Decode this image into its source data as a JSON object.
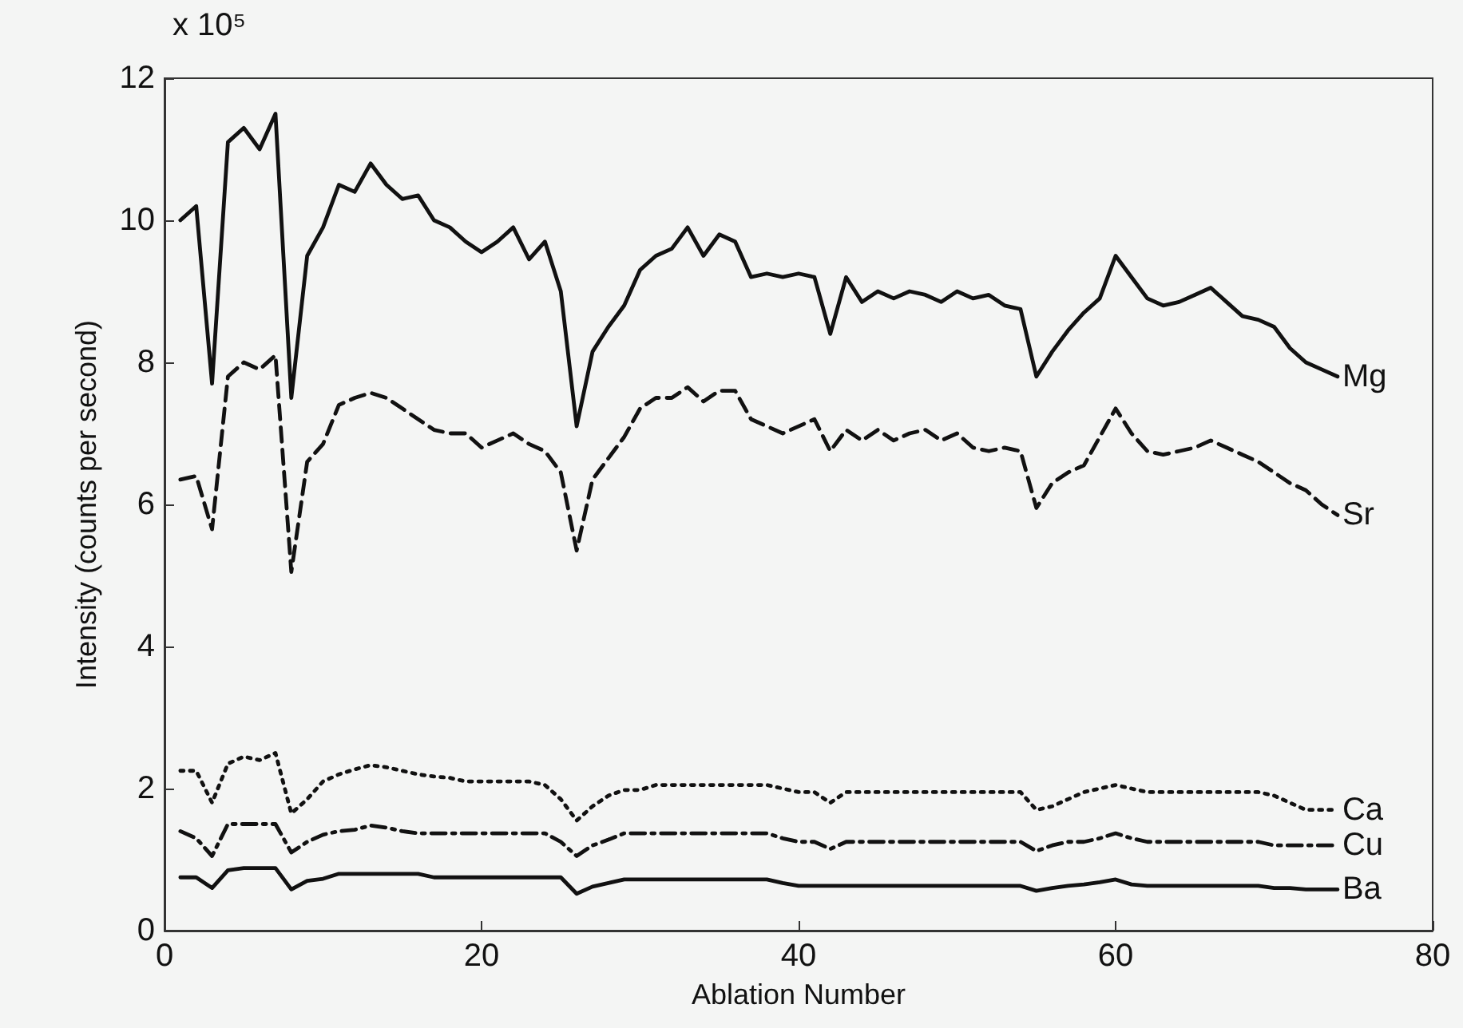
{
  "chart_data": {
    "type": "line",
    "xlabel": "Ablation Number",
    "ylabel": "Intensity (counts per second)",
    "annotations": [
      "x 10⁵"
    ],
    "x": [
      1,
      2,
      3,
      4,
      5,
      6,
      7,
      8,
      9,
      10,
      11,
      12,
      13,
      14,
      15,
      16,
      17,
      18,
      19,
      20,
      21,
      22,
      23,
      24,
      25,
      26,
      27,
      28,
      29,
      30,
      31,
      32,
      33,
      34,
      35,
      36,
      37,
      38,
      39,
      40,
      41,
      42,
      43,
      44,
      45,
      46,
      47,
      48,
      49,
      50,
      51,
      52,
      53,
      54,
      55,
      56,
      57,
      58,
      59,
      60,
      61,
      62,
      63,
      64,
      65,
      66,
      67,
      68,
      69,
      70,
      71,
      72,
      73,
      74
    ],
    "xlim": [
      0,
      80
    ],
    "xticks": [
      0,
      20,
      40,
      60,
      80
    ],
    "ylim": [
      0,
      12
    ],
    "yticks": [
      0,
      2,
      4,
      6,
      8,
      10,
      12
    ],
    "marker": "none",
    "series": [
      {
        "name": "Mg",
        "color": "#111111",
        "line_style": "solid",
        "values": [
          10.0,
          10.2,
          7.7,
          11.1,
          11.3,
          11.0,
          11.5,
          7.5,
          9.5,
          9.9,
          10.5,
          10.4,
          10.8,
          10.5,
          10.3,
          10.35,
          10.0,
          9.9,
          9.7,
          9.55,
          9.7,
          9.9,
          9.45,
          9.7,
          9.0,
          7.1,
          8.15,
          8.5,
          8.8,
          9.3,
          9.5,
          9.6,
          9.9,
          9.5,
          9.8,
          9.7,
          9.2,
          9.25,
          9.2,
          9.25,
          9.2,
          8.4,
          9.2,
          8.85,
          9.0,
          8.9,
          9.0,
          8.95,
          8.85,
          9.0,
          8.9,
          8.95,
          8.8,
          8.75,
          7.8,
          8.15,
          8.45,
          8.7,
          8.9,
          9.5,
          9.2,
          8.9,
          8.8,
          8.85,
          8.95,
          9.05,
          8.85,
          8.65,
          8.6,
          8.5,
          8.2,
          8.0,
          7.9,
          7.8
        ]
      },
      {
        "name": "Sr",
        "color": "#111111",
        "line_style": "dashed",
        "values": [
          6.35,
          6.4,
          5.65,
          7.8,
          8.0,
          7.9,
          8.1,
          5.05,
          6.6,
          6.85,
          7.4,
          7.5,
          7.57,
          7.5,
          7.35,
          7.2,
          7.05,
          7.0,
          7.0,
          6.8,
          6.9,
          7.0,
          6.85,
          6.75,
          6.45,
          5.35,
          6.35,
          6.65,
          6.95,
          7.35,
          7.5,
          7.5,
          7.65,
          7.45,
          7.6,
          7.6,
          7.2,
          7.1,
          7.0,
          7.1,
          7.2,
          6.75,
          7.05,
          6.9,
          7.05,
          6.9,
          7.0,
          7.05,
          6.9,
          7.0,
          6.8,
          6.75,
          6.8,
          6.75,
          5.95,
          6.3,
          6.45,
          6.55,
          6.95,
          7.35,
          7.0,
          6.75,
          6.7,
          6.75,
          6.8,
          6.9,
          6.8,
          6.7,
          6.6,
          6.45,
          6.3,
          6.2,
          6.0,
          5.85
        ]
      },
      {
        "name": "Ca",
        "color": "#111111",
        "line_style": "dotted",
        "values": [
          2.25,
          2.25,
          1.8,
          2.35,
          2.45,
          2.4,
          2.5,
          1.65,
          1.85,
          2.1,
          2.2,
          2.27,
          2.33,
          2.3,
          2.25,
          2.2,
          2.17,
          2.15,
          2.1,
          2.1,
          2.1,
          2.1,
          2.1,
          2.05,
          1.85,
          1.55,
          1.75,
          1.9,
          1.98,
          1.98,
          2.05,
          2.05,
          2.05,
          2.05,
          2.05,
          2.05,
          2.05,
          2.05,
          2.0,
          1.95,
          1.95,
          1.8,
          1.95,
          1.95,
          1.95,
          1.95,
          1.95,
          1.95,
          1.95,
          1.95,
          1.95,
          1.95,
          1.95,
          1.95,
          1.7,
          1.75,
          1.85,
          1.95,
          2.0,
          2.05,
          2.0,
          1.95,
          1.95,
          1.95,
          1.95,
          1.95,
          1.95,
          1.95,
          1.95,
          1.9,
          1.8,
          1.7,
          1.7,
          1.7
        ]
      },
      {
        "name": "Cu",
        "color": "#111111",
        "line_style": "dashdot",
        "values": [
          1.4,
          1.3,
          1.05,
          1.5,
          1.5,
          1.5,
          1.5,
          1.1,
          1.25,
          1.35,
          1.4,
          1.42,
          1.48,
          1.45,
          1.4,
          1.37,
          1.37,
          1.37,
          1.37,
          1.37,
          1.37,
          1.37,
          1.37,
          1.37,
          1.25,
          1.05,
          1.2,
          1.28,
          1.37,
          1.37,
          1.37,
          1.37,
          1.37,
          1.37,
          1.37,
          1.37,
          1.37,
          1.37,
          1.3,
          1.25,
          1.25,
          1.15,
          1.25,
          1.25,
          1.25,
          1.25,
          1.25,
          1.25,
          1.25,
          1.25,
          1.25,
          1.25,
          1.25,
          1.25,
          1.12,
          1.2,
          1.25,
          1.25,
          1.3,
          1.37,
          1.3,
          1.25,
          1.25,
          1.25,
          1.25,
          1.25,
          1.25,
          1.25,
          1.25,
          1.2,
          1.2,
          1.2,
          1.2,
          1.2
        ]
      },
      {
        "name": "Ba",
        "color": "#111111",
        "line_style": "solid",
        "values": [
          0.75,
          0.75,
          0.6,
          0.85,
          0.88,
          0.88,
          0.88,
          0.58,
          0.7,
          0.73,
          0.8,
          0.8,
          0.8,
          0.8,
          0.8,
          0.8,
          0.75,
          0.75,
          0.75,
          0.75,
          0.75,
          0.75,
          0.75,
          0.75,
          0.75,
          0.52,
          0.62,
          0.67,
          0.72,
          0.72,
          0.72,
          0.72,
          0.72,
          0.72,
          0.72,
          0.72,
          0.72,
          0.72,
          0.67,
          0.63,
          0.63,
          0.63,
          0.63,
          0.63,
          0.63,
          0.63,
          0.63,
          0.63,
          0.63,
          0.63,
          0.63,
          0.63,
          0.63,
          0.63,
          0.56,
          0.6,
          0.63,
          0.65,
          0.68,
          0.72,
          0.65,
          0.63,
          0.63,
          0.63,
          0.63,
          0.63,
          0.63,
          0.63,
          0.63,
          0.6,
          0.6,
          0.58,
          0.58,
          0.58
        ]
      }
    ]
  }
}
